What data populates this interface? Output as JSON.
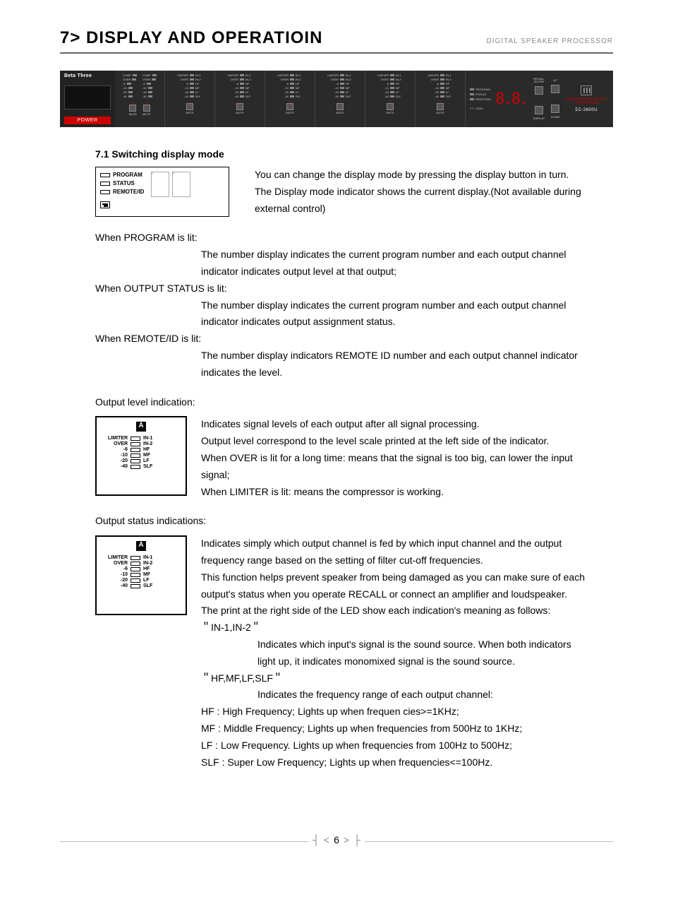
{
  "header": {
    "title": "7> DISPLAY AND OPERATIOIN",
    "subtitle": "DIGITAL SPEAKER PROCESSOR"
  },
  "panel": {
    "brand": "Beta Three",
    "power": "POWER",
    "inputLevels": [
      "COMP",
      "OVER",
      "-6",
      "-10",
      "-20",
      "-40"
    ],
    "muteLabel": "MUTE",
    "outputRows": [
      {
        "l": "LIMITER",
        "r": "IN-1"
      },
      {
        "l": "OVER",
        "r": "IN-2"
      },
      {
        "l": "-6",
        "r": "HF"
      },
      {
        "l": "-10",
        "r": "MF"
      },
      {
        "l": "-20",
        "r": "LF"
      },
      {
        "l": "-40",
        "r": "SLF"
      }
    ],
    "outputCount": 6,
    "modes": [
      "PROGRAM",
      "STATUS",
      "REMOTE/ID"
    ],
    "lock": "LOCK",
    "segment": "8.8.",
    "buttons": {
      "recall": "RECALL\n/ENTER",
      "display": "DISPLAY",
      "up": "UP",
      "down": "DOWN"
    },
    "productTag": "DIGITAL PROCESSOR & CONTROLLER",
    "model": "ΣC-2600U"
  },
  "section71": {
    "heading": "7.1 Switching display mode",
    "modePanel": {
      "labels": [
        "PROGRAM",
        "STATUS",
        "REMOTE/ID"
      ]
    },
    "intro": [
      "You can change the display mode by pressing the display button in turn.",
      "The Display mode indicator shows the current display.(Not available during",
      " external control)"
    ],
    "whenProgram": "When PROGRAM is lit:",
    "whenProgramText": [
      "The number display indicates the current program number and each output channel",
      "indicator indicates output level at that output;"
    ],
    "whenOutput": "When OUTPUT STATUS is lit:",
    "whenOutputText": [
      "The number display indicates the current program number and each output channel",
      "indicator indicates output assignment status."
    ],
    "whenRemote": "When REMOTE/ID is lit:",
    "whenRemoteText": [
      "The number display indicators REMOTE ID number and each output channel indicator",
      "indicates the level."
    ],
    "outputLevelHeading": "Output level indication:",
    "levelPanel": {
      "header": "A",
      "rows": [
        {
          "l": "LIMITER",
          "r": "IN-1"
        },
        {
          "l": "OVER",
          "r": "IN-2"
        },
        {
          "l": "-6",
          "r": "HF"
        },
        {
          "l": "-10",
          "r": "MF"
        },
        {
          "l": "-20",
          "r": "LF"
        },
        {
          "l": "-40",
          "r": "SLF"
        }
      ]
    },
    "outputLevelText": [
      "Indicates signal levels of each output after all signal processing.",
      "Output level correspond to the level scale printed at the left side of the indicator.",
      "When OVER is lit for a long time: means that the signal is too big,  can lower the input",
      "signal;",
      "When LIMITER is lit:  means the compressor is working."
    ],
    "outputStatusHeading": "Output status indications:",
    "outputStatusText": [
      "Indicates simply which output channel is fed by which input channel and the output",
      "frequency range based on the setting of filter cut-off frequencies.",
      "This function helps prevent speaker from being damaged as you can make sure of each",
      "output's status when you operate RECALL or connect an amplifier and loudspeaker.",
      "The print at the right side of the LED show each indication's meaning as follows:",
      "＂IN-1,IN-2＂"
    ],
    "inText": [
      "Indicates which input's signal is the sound source. When both indicators",
      "light up, it indicates monomixed signal is the sound source."
    ],
    "freqHeading": "＂HF,MF,LF,SLF＂",
    "freqIntro": "Indicates the frequency range of each output channel:",
    "freqLines": [
      "HF   : High Frequency;  Lights up  when frequen cies>=1KHz;",
      "MF  : Middle Frequency; Lights up when frequencies from 500Hz to 1KHz;",
      "LF   : Low Frequency. Lights up when frequencies from 100Hz to 500Hz;",
      "SLF : Super Low Frequency; Lights up when frequencies<=100Hz."
    ]
  },
  "page": {
    "number": "6"
  }
}
